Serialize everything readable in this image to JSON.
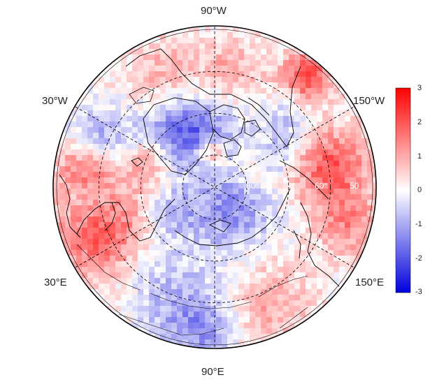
{
  "map": {
    "projection": "north-polar-stereographic",
    "coastline_color": "#000000",
    "graticule_style": "dashed",
    "meridian_labels": [
      {
        "id": "lon-90w",
        "text": "90°W"
      },
      {
        "id": "lon-150w",
        "text": "150°W"
      },
      {
        "id": "lon-30w",
        "text": "30°W"
      },
      {
        "id": "lon-30e",
        "text": "30°E"
      },
      {
        "id": "lon-150e",
        "text": "150°E"
      },
      {
        "id": "lon-90e",
        "text": "90°E"
      }
    ],
    "parallel_labels": [
      {
        "id": "lat-80",
        "text": "80°"
      },
      {
        "id": "lat-60",
        "text": "60°"
      },
      {
        "id": "lat-50",
        "text": "50"
      }
    ]
  },
  "colorbar": {
    "min": -3,
    "max": 3,
    "colors": {
      "low": "#0000dd",
      "mid": "#ffffff",
      "high": "#ff0000"
    },
    "ticks": [
      "3",
      "2",
      "1",
      "0",
      "-1",
      "-2",
      "-3"
    ]
  }
}
